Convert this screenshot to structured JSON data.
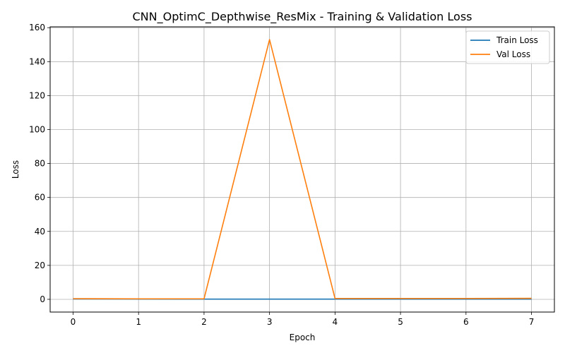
{
  "chart_data": {
    "type": "line",
    "title": "CNN_OptimC_Depthwise_ResMix - Training & Validation Loss",
    "xlabel": "Epoch",
    "ylabel": "Loss",
    "x": [
      0,
      1,
      2,
      3,
      4,
      5,
      6,
      7
    ],
    "xlim": [
      -0.35,
      7.35
    ],
    "ylim": [
      -7.5,
      160.5
    ],
    "xticks": [
      0,
      1,
      2,
      3,
      4,
      5,
      6,
      7
    ],
    "yticks": [
      0,
      20,
      40,
      60,
      80,
      100,
      120,
      140,
      160
    ],
    "grid": true,
    "legend_position": "top-right",
    "series": [
      {
        "name": "Train Loss",
        "color": "#1f77b4",
        "values": [
          0.2,
          0.15,
          0.12,
          0.12,
          0.1,
          0.1,
          0.1,
          0.1
        ]
      },
      {
        "name": "Val Loss",
        "color": "#ff7f0e",
        "values": [
          0.4,
          0.3,
          0.3,
          153.0,
          0.5,
          0.5,
          0.5,
          0.6
        ]
      }
    ]
  }
}
